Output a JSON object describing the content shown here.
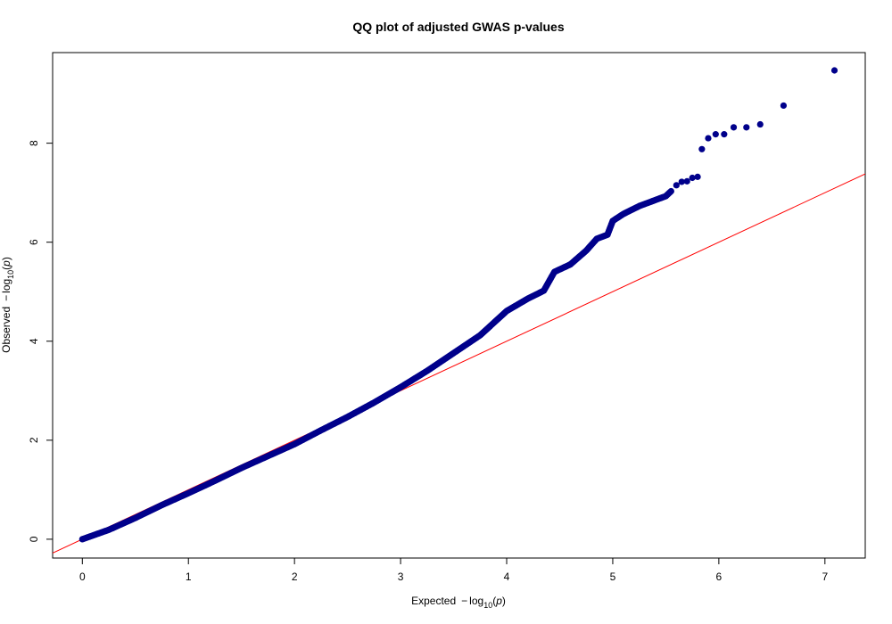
{
  "chart_data": {
    "type": "scatter",
    "title": "QQ plot of adjusted GWAS p-values",
    "xlabel_prefix": "Expected",
    "ylabel_prefix": "Observed",
    "label_expr": {
      "minus": "−",
      "log": "log",
      "sub": "10",
      "open": "(",
      "var": "p",
      "close": ")"
    },
    "xlim": [
      -0.28,
      7.38
    ],
    "ylim": [
      -0.38,
      9.83
    ],
    "x_ticks": [
      "0",
      "1",
      "2",
      "3",
      "4",
      "5",
      "6",
      "7"
    ],
    "y_ticks": [
      "0",
      "2",
      "4",
      "6",
      "8"
    ],
    "grid": false,
    "point_color": "#00008B",
    "line_color": "#FF0000",
    "reference_line": {
      "intercept": 0,
      "slope": 1
    },
    "dense_curve": [
      [
        0.0,
        0.0
      ],
      [
        0.25,
        0.19
      ],
      [
        0.5,
        0.43
      ],
      [
        0.75,
        0.69
      ],
      [
        1.0,
        0.93
      ],
      [
        1.25,
        1.18
      ],
      [
        1.5,
        1.44
      ],
      [
        1.75,
        1.68
      ],
      [
        2.0,
        1.92
      ],
      [
        2.25,
        2.2
      ],
      [
        2.5,
        2.47
      ],
      [
        2.75,
        2.76
      ],
      [
        3.0,
        3.07
      ],
      [
        3.25,
        3.4
      ],
      [
        3.5,
        3.76
      ],
      [
        3.75,
        4.12
      ],
      [
        4.0,
        4.61
      ],
      [
        4.2,
        4.86
      ],
      [
        4.35,
        5.02
      ],
      [
        4.45,
        5.4
      ],
      [
        4.6,
        5.55
      ],
      [
        4.75,
        5.83
      ],
      [
        4.85,
        6.07
      ],
      [
        4.95,
        6.15
      ],
      [
        5.0,
        6.43
      ],
      [
        5.1,
        6.57
      ],
      [
        5.25,
        6.73
      ],
      [
        5.4,
        6.85
      ],
      [
        5.5,
        6.93
      ],
      [
        5.55,
        7.03
      ]
    ],
    "points": [
      [
        5.6,
        7.15
      ],
      [
        5.65,
        7.22
      ],
      [
        5.7,
        7.23
      ],
      [
        5.75,
        7.3
      ],
      [
        5.8,
        7.32
      ],
      [
        5.84,
        7.88
      ],
      [
        5.9,
        8.1
      ],
      [
        5.97,
        8.18
      ],
      [
        6.05,
        8.18
      ],
      [
        6.14,
        8.32
      ],
      [
        6.26,
        8.32
      ],
      [
        6.39,
        8.38
      ],
      [
        6.61,
        8.76
      ],
      [
        7.09,
        9.47
      ]
    ]
  }
}
